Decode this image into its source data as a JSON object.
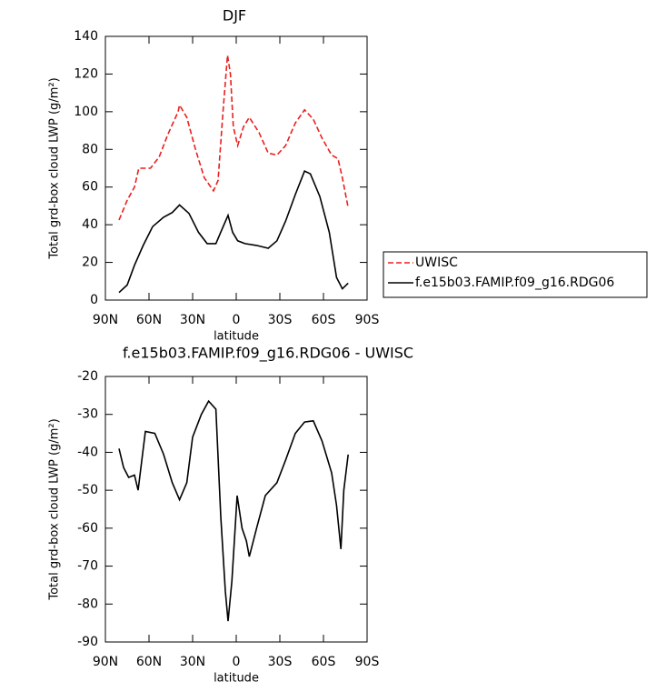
{
  "chart_data": [
    {
      "type": "line",
      "title": "DJF",
      "x_label": "latitude",
      "y_label": "Total grd-box cloud LWP (g/m²)",
      "xlim": [
        90,
        -90
      ],
      "ylim": [
        0,
        140
      ],
      "xticks": [
        {
          "value": 90,
          "label": "90N"
        },
        {
          "value": 60,
          "label": "60N"
        },
        {
          "value": 30,
          "label": "30N"
        },
        0,
        {
          "value": -30,
          "label": "30S"
        },
        {
          "value": -60,
          "label": "60S"
        },
        {
          "value": -90,
          "label": "90S"
        }
      ],
      "yticks": [
        0,
        20,
        40,
        60,
        80,
        100,
        120,
        140
      ],
      "legend": "right",
      "series": [
        {
          "name": "UWISC",
          "color": "#e8201e",
          "line_style": "dashed",
          "x": [
            80.6,
            75,
            70,
            67,
            62.5,
            59,
            53,
            47,
            40,
            39,
            34,
            28,
            22,
            15.6,
            12.5,
            9,
            6,
            4,
            2,
            -1,
            -5,
            -9,
            -15.6,
            -22,
            -28,
            -34,
            -40.6,
            -47,
            -53,
            -59,
            -65.6,
            -70,
            -73,
            -77
          ],
          "values": [
            42.5,
            53,
            60,
            70,
            70,
            70,
            76,
            88,
            100,
            103.5,
            97,
            80,
            65,
            58,
            63.5,
            101,
            130,
            120,
            92,
            82,
            92,
            97,
            89,
            78,
            77,
            82,
            94,
            101,
            96,
            86,
            77,
            75,
            65,
            49
          ]
        },
        {
          "name": "f.e15b03.FAMIP.f09_g16.RDG06",
          "color": "#000000",
          "line_style": "solid",
          "x": [
            80.6,
            75,
            70,
            64,
            57.5,
            50,
            44,
            39,
            32.5,
            26,
            20,
            14,
            9,
            5.6,
            2.5,
            -1,
            -6,
            -14,
            -22,
            -28,
            -34,
            -40.6,
            -47,
            -51,
            -57.5,
            -64,
            -69,
            -73,
            -77
          ],
          "values": [
            4,
            8,
            18.5,
            29,
            39,
            44,
            46.5,
            50.5,
            46,
            36,
            30,
            30,
            39,
            45,
            36,
            31.5,
            30,
            29,
            27.5,
            31.5,
            42,
            56,
            68.5,
            67,
            55,
            36,
            12,
            6,
            9
          ]
        }
      ]
    },
    {
      "type": "line",
      "title": "f.e15b03.FAMIP.f09_g16.RDG06 - UWISC",
      "x_label": "latitude",
      "y_label": "Total grd-box cloud LWP (g/m²)",
      "xlim": [
        90,
        -90
      ],
      "ylim": [
        -90,
        -20
      ],
      "xticks": [
        {
          "value": 90,
          "label": "90N"
        },
        {
          "value": 60,
          "label": "60N"
        },
        {
          "value": 30,
          "label": "30N"
        },
        0,
        {
          "value": -30,
          "label": "30S"
        },
        {
          "value": -60,
          "label": "60S"
        },
        {
          "value": -90,
          "label": "90S"
        }
      ],
      "yticks": [
        -90,
        -80,
        -70,
        -60,
        -50,
        -40,
        -30,
        -20
      ],
      "series": [
        {
          "color": "#000000",
          "line_style": "solid",
          "x": [
            80.6,
            77.5,
            74,
            70,
            67.5,
            62.5,
            56,
            50,
            44,
            39,
            34,
            30,
            24,
            19,
            14,
            10.6,
            7.5,
            5.6,
            3,
            -0.6,
            -4,
            -7,
            -9,
            -14,
            -20,
            -28,
            -34,
            -40.6,
            -47,
            -53,
            -59,
            -65.6,
            -69,
            -72,
            -74,
            -77
          ],
          "values": [
            -39,
            -44,
            -46.6,
            -46,
            -50,
            -34.5,
            -35,
            -40.5,
            -48,
            -52.5,
            -48,
            -36,
            -30,
            -26.5,
            -28.6,
            -57,
            -76.6,
            -84.5,
            -74,
            -51.4,
            -60,
            -63.4,
            -67.5,
            -60,
            -51.4,
            -48,
            -42,
            -35,
            -32,
            -31.7,
            -37,
            -45.4,
            -54,
            -65.5,
            -50,
            -40.6
          ]
        }
      ]
    }
  ]
}
